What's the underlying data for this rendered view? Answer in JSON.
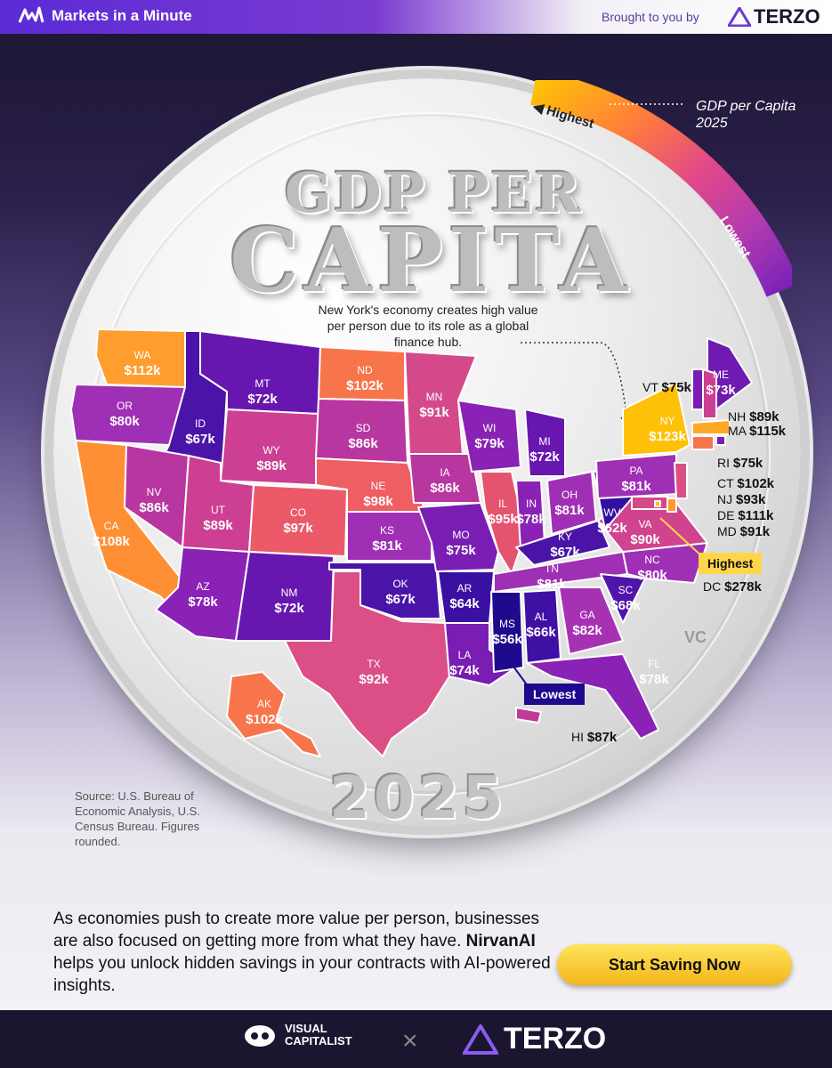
{
  "header": {
    "brand": "Markets in a Minute",
    "brought_by": "Brought to you by",
    "sponsor": "TERZO"
  },
  "title": {
    "line1": "GDP PER",
    "line2": "CAPITA"
  },
  "gauge": {
    "title_line1": "GDP per Capita",
    "title_line2": "2025",
    "high_label": "Highest",
    "low_label": "Lowest"
  },
  "annotation": "New York's economy creates high value per person due to its role as a global finance hub.",
  "scale_colors": {
    "highest": "#ffc107",
    "high": "#ff7a3d",
    "mid_high": "#e0488a",
    "mid": "#b33bb0",
    "mid_low": "#7a22b8",
    "lowest": "#2a0a9c"
  },
  "states": [
    {
      "abbr": "WA",
      "value": "$112k",
      "color": "#ff9d2e"
    },
    {
      "abbr": "OR",
      "value": "$80k",
      "color": "#9f2fb5"
    },
    {
      "abbr": "CA",
      "value": "$108k",
      "color": "#ff8f34"
    },
    {
      "abbr": "ID",
      "value": "$67k",
      "color": "#4a14a8"
    },
    {
      "abbr": "NV",
      "value": "$86k",
      "color": "#b8369f"
    },
    {
      "abbr": "MT",
      "value": "$72k",
      "color": "#6717b0"
    },
    {
      "abbr": "WY",
      "value": "$89k",
      "color": "#cc3f92"
    },
    {
      "abbr": "UT",
      "value": "$89k",
      "color": "#cc3f92"
    },
    {
      "abbr": "AZ",
      "value": "$78k",
      "color": "#8a22b5"
    },
    {
      "abbr": "CO",
      "value": "$97k",
      "color": "#ec5a6a"
    },
    {
      "abbr": "NM",
      "value": "$72k",
      "color": "#6717b0"
    },
    {
      "abbr": "ND",
      "value": "$102k",
      "color": "#f8744a"
    },
    {
      "abbr": "SD",
      "value": "$86k",
      "color": "#b8369f"
    },
    {
      "abbr": "NE",
      "value": "$98k",
      "color": "#ee5e62"
    },
    {
      "abbr": "KS",
      "value": "$81k",
      "color": "#9f2fb5"
    },
    {
      "abbr": "OK",
      "value": "$67k",
      "color": "#4a14a8"
    },
    {
      "abbr": "TX",
      "value": "$92k",
      "color": "#db4e86"
    },
    {
      "abbr": "MN",
      "value": "$91k",
      "color": "#d4498a"
    },
    {
      "abbr": "IA",
      "value": "$86k",
      "color": "#b8369f"
    },
    {
      "abbr": "MO",
      "value": "$75k",
      "color": "#7a1db3"
    },
    {
      "abbr": "AR",
      "value": "$64k",
      "color": "#3a10a3"
    },
    {
      "abbr": "LA",
      "value": "$74k",
      "color": "#7a1db3"
    },
    {
      "abbr": "WI",
      "value": "$79k",
      "color": "#8a22b5"
    },
    {
      "abbr": "IL",
      "value": "$95k",
      "color": "#e4546e"
    },
    {
      "abbr": "MI",
      "value": "$72k",
      "color": "#6717b0"
    },
    {
      "abbr": "IN",
      "value": "$78k",
      "color": "#8a22b5"
    },
    {
      "abbr": "OH",
      "value": "$81k",
      "color": "#9f2fb5"
    },
    {
      "abbr": "KY",
      "value": "$67k",
      "color": "#4a14a8"
    },
    {
      "abbr": "TN",
      "value": "$81k",
      "color": "#9f2fb5"
    },
    {
      "abbr": "MS",
      "value": "$56k",
      "color": "#1f0a8e"
    },
    {
      "abbr": "AL",
      "value": "$66k",
      "color": "#4010a5"
    },
    {
      "abbr": "GA",
      "value": "$82k",
      "color": "#a731b3"
    },
    {
      "abbr": "FL",
      "value": "$78k",
      "color": "#8a22b5"
    },
    {
      "abbr": "SC",
      "value": "$68k",
      "color": "#5014aa"
    },
    {
      "abbr": "NC",
      "value": "$80k",
      "color": "#9f2fb5"
    },
    {
      "abbr": "VA",
      "value": "$90k",
      "color": "#d0438d"
    },
    {
      "abbr": "WV",
      "value": "$62k",
      "color": "#3410a0"
    },
    {
      "abbr": "PA",
      "value": "$81k",
      "color": "#9f2fb5"
    },
    {
      "abbr": "NY",
      "value": "$123k",
      "color": "#ffc107"
    },
    {
      "abbr": "VT",
      "value": "$75k",
      "color": "#7a1db3"
    },
    {
      "abbr": "ME",
      "value": "$73k",
      "color": "#6f1bb1"
    },
    {
      "abbr": "NH",
      "value": "$89k",
      "color": "#cc3f92"
    },
    {
      "abbr": "MA",
      "value": "$115k",
      "color": "#ffa826"
    },
    {
      "abbr": "RI",
      "value": "$75k",
      "color": "#7a1db3"
    },
    {
      "abbr": "CT",
      "value": "$102k",
      "color": "#f8744a"
    },
    {
      "abbr": "NJ",
      "value": "$93k",
      "color": "#dc4f83"
    },
    {
      "abbr": "DE",
      "value": "$111k",
      "color": "#ff9a2f"
    },
    {
      "abbr": "MD",
      "value": "$91k",
      "color": "#d4498a"
    },
    {
      "abbr": "DC",
      "value": "$278k",
      "color": "#ffc107"
    },
    {
      "abbr": "AK",
      "value": "$102k",
      "color": "#f8744a"
    },
    {
      "abbr": "HI",
      "value": "$87k",
      "color": "#c03a98"
    }
  ],
  "callouts": {
    "highest": "Highest",
    "lowest": "Lowest"
  },
  "coin_mark": "VC",
  "year": "2025",
  "source": "Source: U.S. Bureau of Economic Analysis, U.S. Census Bureau. Figures rounded.",
  "footer": {
    "text_before": "As economies push to create more value per person, businesses are also focused on getting more from what they have. ",
    "brand": "NirvanAI",
    "text_after": " helps you unlock hidden savings in your contracts with AI-powered insights.",
    "cta": "Start Saving Now",
    "logo_left_top": "VISUAL",
    "logo_left_bottom": "CAPITALIST",
    "logo_right": "TERZO"
  }
}
